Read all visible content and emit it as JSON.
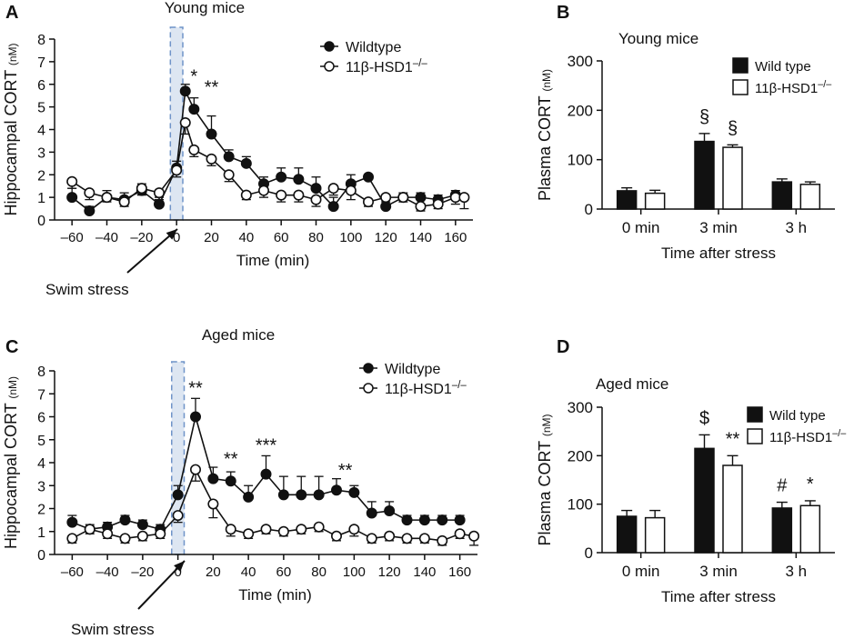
{
  "chart_data": [
    {
      "panel": "A",
      "type": "line",
      "title": "Young mice",
      "xlabel": "Time (min)",
      "ylabel": "Hippocampal CORT",
      "ylabel_unit": "(nM)",
      "xlim": [
        -70,
        170
      ],
      "ylim": [
        0,
        8
      ],
      "xticks": [
        -60,
        -40,
        -20,
        0,
        20,
        40,
        60,
        80,
        100,
        120,
        140,
        160
      ],
      "yticks": [
        0,
        1,
        2,
        3,
        4,
        5,
        6,
        7,
        8
      ],
      "grid": false,
      "legend_position": "top-right",
      "stress_label": "Swim stress",
      "shaded_interval": [
        -2,
        2
      ],
      "series": [
        {
          "name": "Wildtype",
          "marker": "filled",
          "x": [
            -60,
            -50,
            -40,
            -30,
            -20,
            -10,
            0,
            5,
            10,
            20,
            30,
            40,
            50,
            60,
            70,
            80,
            90,
            100,
            110,
            120,
            130,
            140,
            150,
            160
          ],
          "y": [
            1.0,
            0.4,
            1.0,
            0.9,
            1.3,
            0.7,
            2.3,
            5.7,
            4.9,
            3.8,
            2.8,
            2.5,
            1.6,
            1.9,
            1.8,
            1.4,
            0.6,
            1.6,
            1.9,
            0.6,
            1.0,
            1.0,
            0.9,
            1.1
          ],
          "err": [
            0.4,
            0.2,
            0.3,
            0.3,
            0.3,
            0.3,
            0.3,
            0.3,
            0.5,
            0.8,
            0.3,
            0.3,
            0.3,
            0.4,
            0.5,
            0.5,
            0.4,
            0.4,
            0.1,
            0.3,
            0.2,
            0.2,
            0.2,
            0.2
          ]
        },
        {
          "name": "11β-HSD1",
          "name_sup": "–/–",
          "marker": "open",
          "x": [
            -60,
            -50,
            -40,
            -30,
            -20,
            -10,
            0,
            5,
            10,
            20,
            30,
            40,
            50,
            60,
            70,
            80,
            90,
            100,
            110,
            120,
            130,
            140,
            150,
            160,
            165
          ],
          "y": [
            1.7,
            1.2,
            1.0,
            0.8,
            1.4,
            1.2,
            2.2,
            4.3,
            3.1,
            2.7,
            2.0,
            1.1,
            1.3,
            1.1,
            1.1,
            0.9,
            1.4,
            1.3,
            0.8,
            1.0,
            1.0,
            0.6,
            0.7,
            1.0,
            1.0
          ],
          "err": [
            0.3,
            0.3,
            0.2,
            0.2,
            0.3,
            0.3,
            0.3,
            0.5,
            0.3,
            0.3,
            0.3,
            0.2,
            0.3,
            0.3,
            0.3,
            0.3,
            0.3,
            0.4,
            0.2,
            0.2,
            0.2,
            0.2,
            0.2,
            0.3,
            0.5
          ]
        }
      ],
      "annotations": [
        {
          "x": 10,
          "y": 6.1,
          "text": "*"
        },
        {
          "x": 20,
          "y": 5.6,
          "text": "**"
        }
      ]
    },
    {
      "panel": "B",
      "type": "bar",
      "title": "Young mice",
      "xlabel": "Time after stress",
      "ylabel": "Plasma CORT",
      "ylabel_unit": "(nM)",
      "categories": [
        "0 min",
        "3 min",
        "3 h"
      ],
      "ylim": [
        0,
        300
      ],
      "yticks": [
        0,
        100,
        200,
        300
      ],
      "grid": false,
      "legend_position": "top-right",
      "series": [
        {
          "name": "Wild type",
          "fill": "#111111",
          "values": [
            37,
            137,
            55
          ],
          "err": [
            6,
            16,
            6
          ]
        },
        {
          "name": "11β-HSD1",
          "name_sup": "–/–",
          "fill": "#ffffff",
          "values": [
            32,
            125,
            50
          ],
          "err": [
            6,
            5,
            5
          ]
        }
      ],
      "annotations": [
        {
          "category": 1,
          "series": 0,
          "text": "§"
        },
        {
          "category": 1,
          "series": 1,
          "text": "§"
        }
      ]
    },
    {
      "panel": "C",
      "type": "line",
      "title": "Aged mice",
      "xlabel": "Time (min)",
      "ylabel": "Hippocampal CORT",
      "ylabel_unit": "(nM)",
      "xlim": [
        -70,
        170
      ],
      "ylim": [
        0,
        8
      ],
      "xticks": [
        -60,
        -40,
        -20,
        0,
        20,
        40,
        60,
        80,
        100,
        120,
        140,
        160
      ],
      "yticks": [
        0,
        1,
        2,
        3,
        4,
        5,
        6,
        7,
        8
      ],
      "grid": false,
      "legend_position": "top-right",
      "stress_label": "Swim stress",
      "shaded_interval": [
        -2,
        2
      ],
      "series": [
        {
          "name": "Wildtype",
          "marker": "filled",
          "x": [
            -60,
            -50,
            -40,
            -30,
            -20,
            -10,
            0,
            10,
            20,
            30,
            40,
            50,
            60,
            70,
            80,
            90,
            100,
            110,
            120,
            130,
            140,
            150,
            160
          ],
          "y": [
            1.4,
            1.1,
            1.2,
            1.5,
            1.3,
            1.1,
            2.6,
            6.0,
            3.3,
            3.2,
            2.5,
            3.5,
            2.6,
            2.6,
            2.6,
            2.8,
            2.7,
            1.8,
            1.9,
            1.5,
            1.5,
            1.5,
            1.5
          ],
          "err": [
            0.3,
            0.2,
            0.2,
            0.2,
            0.2,
            0.2,
            0.4,
            0.8,
            0.5,
            0.4,
            0.5,
            0.8,
            0.8,
            0.8,
            0.8,
            0.5,
            0.3,
            0.5,
            0.4,
            0.2,
            0.2,
            0.2,
            0.2
          ]
        },
        {
          "name": "11β-HSD1",
          "name_sup": "–/–",
          "marker": "open",
          "x": [
            -60,
            -50,
            -40,
            -30,
            -20,
            -10,
            0,
            10,
            20,
            30,
            40,
            50,
            60,
            70,
            80,
            90,
            100,
            110,
            120,
            130,
            140,
            150,
            160,
            168
          ],
          "y": [
            0.7,
            1.1,
            0.9,
            0.7,
            0.8,
            0.9,
            1.7,
            3.7,
            2.2,
            1.1,
            0.9,
            1.1,
            1.0,
            1.1,
            1.2,
            0.8,
            1.1,
            0.7,
            0.8,
            0.7,
            0.7,
            0.6,
            0.9,
            0.8
          ],
          "err": [
            0.2,
            0.2,
            0.2,
            0.2,
            0.2,
            0.2,
            0.3,
            0.5,
            0.6,
            0.3,
            0.2,
            0.2,
            0.2,
            0.2,
            0.2,
            0.2,
            0.3,
            0.2,
            0.2,
            0.2,
            0.2,
            0.2,
            0.2,
            0.4
          ]
        }
      ],
      "annotations": [
        {
          "x": 10,
          "y": 7.0,
          "text": "**"
        },
        {
          "x": 30,
          "y": 3.9,
          "text": "**"
        },
        {
          "x": 50,
          "y": 4.5,
          "text": "***"
        },
        {
          "x": 95,
          "y": 3.4,
          "text": "**"
        }
      ]
    },
    {
      "panel": "D",
      "type": "bar",
      "title": "Aged mice",
      "xlabel": "Time after stress",
      "ylabel": "Plasma CORT",
      "ylabel_unit": "(nM)",
      "categories": [
        "0 min",
        "3 min",
        "3 h"
      ],
      "ylim": [
        0,
        300
      ],
      "yticks": [
        0,
        100,
        200,
        300
      ],
      "grid": false,
      "legend_position": "top-right",
      "series": [
        {
          "name": "Wild type",
          "fill": "#111111",
          "values": [
            75,
            215,
            92
          ],
          "err": [
            12,
            28,
            12
          ]
        },
        {
          "name": "11β-HSD1",
          "name_sup": "–/–",
          "fill": "#ffffff",
          "values": [
            72,
            180,
            97
          ],
          "err": [
            15,
            20,
            10
          ]
        }
      ],
      "annotations": [
        {
          "category": 1,
          "series": 0,
          "text": "$"
        },
        {
          "category": 1,
          "series": 1,
          "text": "**"
        },
        {
          "category": 2,
          "series": 0,
          "text": "#"
        },
        {
          "category": 2,
          "series": 1,
          "text": "*"
        }
      ]
    }
  ]
}
